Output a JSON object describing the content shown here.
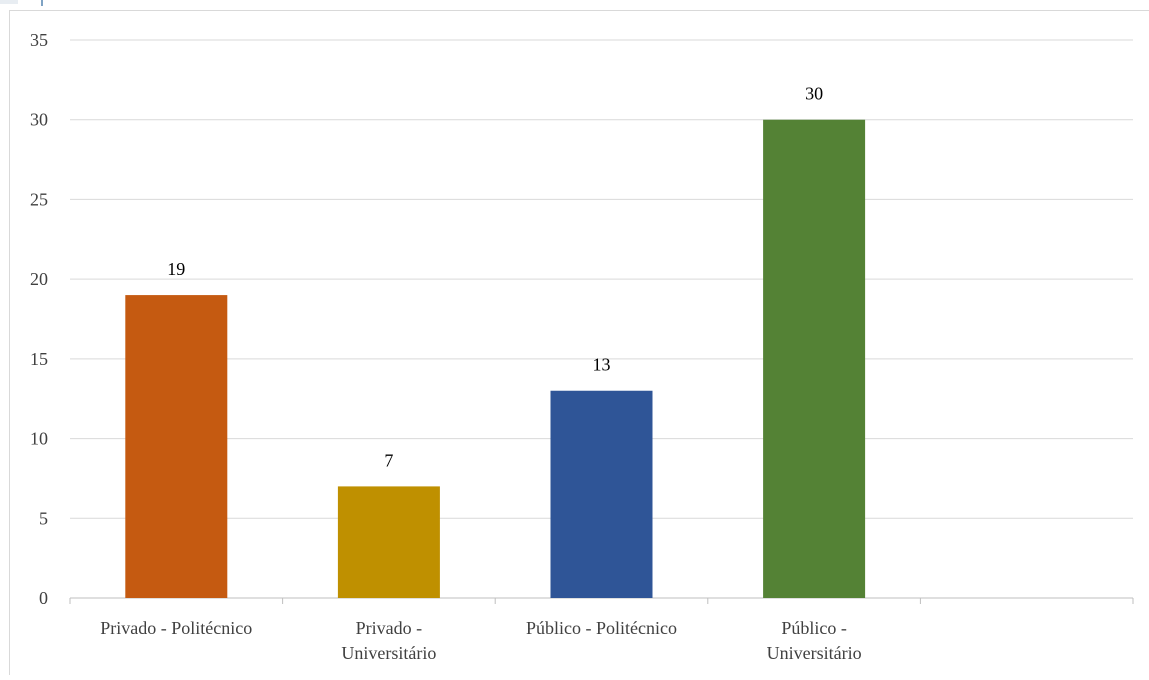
{
  "chart_data": {
    "type": "bar",
    "title": "",
    "xlabel": "",
    "ylabel": "",
    "categories": [
      [
        "Privado - Politécnico"
      ],
      [
        "Privado -",
        "Universitário"
      ],
      [
        "Público - Politécnico"
      ],
      [
        "Público -",
        "Universitário"
      ]
    ],
    "values": [
      19,
      7,
      13,
      30
    ],
    "data_labels": [
      "19",
      "7",
      "13",
      "30"
    ],
    "colors": [
      "#c55a11",
      "#bf9000",
      "#2f5597",
      "#548235"
    ],
    "ylim": [
      0,
      35
    ],
    "yticks": [
      "0",
      "5",
      "10",
      "15",
      "20",
      "25",
      "30",
      "35"
    ],
    "grid": true,
    "legend": "none"
  }
}
